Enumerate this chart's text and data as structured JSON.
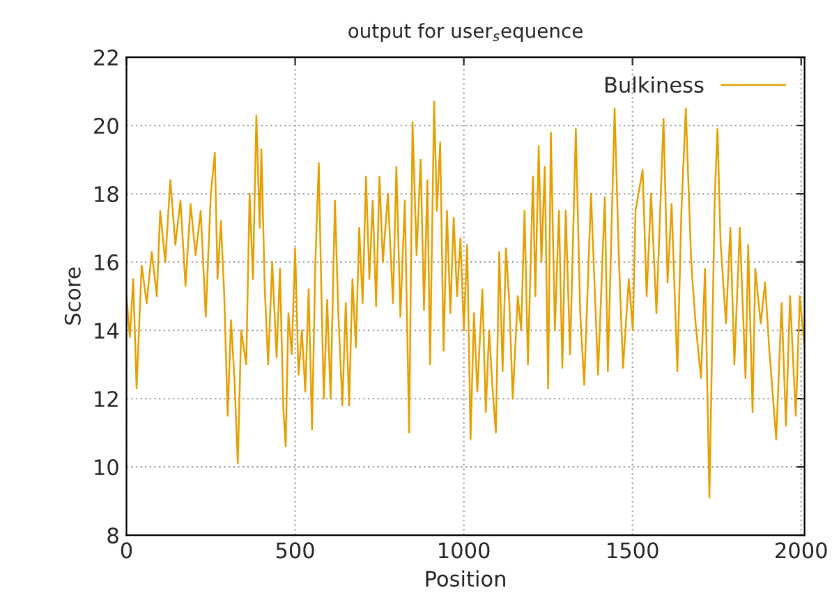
{
  "chart_data": {
    "type": "line",
    "title": "output for user$_{s}$equence",
    "xlabel": "Position",
    "ylabel": "Score",
    "xlim": [
      0,
      2010
    ],
    "ylim": [
      8,
      22
    ],
    "xticks": [
      0,
      500,
      1000,
      1500,
      2000
    ],
    "yticks": [
      8,
      10,
      12,
      14,
      16,
      18,
      20,
      22
    ],
    "grid": true,
    "legend": "top right",
    "series": [
      {
        "name": "Bulkiness",
        "color": "#e69f00",
        "x": [
          0,
          10,
          20,
          30,
          45,
          60,
          75,
          90,
          100,
          115,
          130,
          145,
          160,
          175,
          190,
          205,
          220,
          235,
          250,
          262,
          270,
          280,
          290,
          300,
          310,
          320,
          330,
          340,
          355,
          365,
          375,
          385,
          395,
          400,
          410,
          420,
          432,
          445,
          455,
          465,
          472,
          480,
          490,
          500,
          510,
          520,
          530,
          540,
          550,
          560,
          570,
          578,
          585,
          595,
          605,
          618,
          628,
          640,
          650,
          660,
          670,
          680,
          690,
          700,
          710,
          720,
          730,
          740,
          750,
          760,
          775,
          790,
          800,
          812,
          825,
          838,
          848,
          860,
          872,
          882,
          892,
          900,
          912,
          920,
          930,
          940,
          950,
          960,
          970,
          980,
          990,
          1000,
          1010,
          1020,
          1030,
          1040,
          1055,
          1065,
          1075,
          1085,
          1095,
          1105,
          1115,
          1125,
          1135,
          1145,
          1160,
          1170,
          1180,
          1190,
          1205,
          1212,
          1222,
          1230,
          1240,
          1250,
          1258,
          1270,
          1282,
          1292,
          1302,
          1315,
          1332,
          1345,
          1357,
          1377,
          1398,
          1418,
          1427,
          1447,
          1460,
          1472,
          1489,
          1501,
          1509,
          1530,
          1542,
          1555,
          1571,
          1592,
          1604,
          1616,
          1633,
          1645,
          1658,
          1674,
          1687,
          1703,
          1715,
          1728,
          1744,
          1752,
          1761,
          1777,
          1790,
          1802,
          1818,
          1835,
          1843,
          1856,
          1864,
          1880,
          1893,
          1905,
          1926,
          1942,
          1955,
          1967,
          1984,
          1996,
          2010
        ],
        "values": [
          15.0,
          13.8,
          15.5,
          12.3,
          15.9,
          14.8,
          16.3,
          15.0,
          17.5,
          16.0,
          18.4,
          16.5,
          17.8,
          15.3,
          17.7,
          16.2,
          17.5,
          14.4,
          18.0,
          19.2,
          15.5,
          17.2,
          15.0,
          11.5,
          14.3,
          12.6,
          10.1,
          14.0,
          13.0,
          18.0,
          15.5,
          20.3,
          17.0,
          19.3,
          15.2,
          13.0,
          16.0,
          13.2,
          15.8,
          11.7,
          10.6,
          14.5,
          13.3,
          16.4,
          12.7,
          14.0,
          12.2,
          15.2,
          11.1,
          16.0,
          18.9,
          15.0,
          12.0,
          14.9,
          12.0,
          17.8,
          14.5,
          11.8,
          14.8,
          11.8,
          15.5,
          13.5,
          17.0,
          14.8,
          18.5,
          15.5,
          17.8,
          14.7,
          18.5,
          16.0,
          18.0,
          14.8,
          18.8,
          14.4,
          17.8,
          11.0,
          20.1,
          16.2,
          19.0,
          14.6,
          18.4,
          13.0,
          20.7,
          17.5,
          19.5,
          13.4,
          17.5,
          14.5,
          17.3,
          15.0,
          16.7,
          14.0,
          16.5,
          10.8,
          14.5,
          12.2,
          15.2,
          11.6,
          14.0,
          12.3,
          11.0,
          16.3,
          12.8,
          16.4,
          14.8,
          12.0,
          15.0,
          14.0,
          17.5,
          13.0,
          18.5,
          15.0,
          19.4,
          16.0,
          18.8,
          12.3,
          19.8,
          14.0,
          17.5,
          12.9,
          17.5,
          13.3,
          19.9,
          14.5,
          12.4,
          18.0,
          12.7,
          17.9,
          12.8,
          20.5,
          16.0,
          12.9,
          15.5,
          14.0,
          17.5,
          18.7,
          15.0,
          18.0,
          14.5,
          20.2,
          15.4,
          17.7,
          12.8,
          17.5,
          20.5,
          16.0,
          14.2,
          12.6,
          15.8,
          9.1,
          18.0,
          19.9,
          16.6,
          14.2,
          17.0,
          13.0,
          17.0,
          12.6,
          16.5,
          11.6,
          15.8,
          14.2,
          15.4,
          13.5,
          10.8,
          14.8,
          11.2,
          15.0,
          11.5,
          15.0,
          13.5
        ]
      }
    ]
  }
}
